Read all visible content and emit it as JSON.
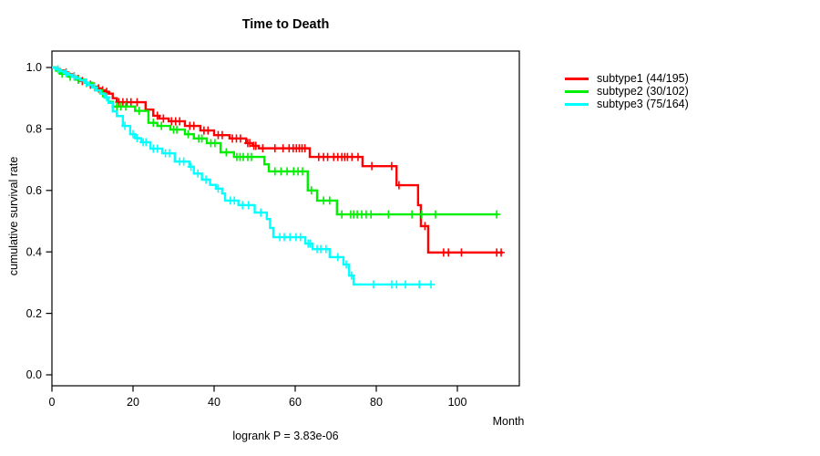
{
  "chart_data": {
    "type": "line",
    "subtype": "kaplan-meier-step-curves",
    "title": "Time to Death",
    "xlabel": "Month",
    "ylabel": "cumulative survival rate",
    "annotation": "logrank P = 3.83e-06",
    "x_ticks": [
      0,
      20,
      40,
      60,
      80,
      100
    ],
    "y_ticks": [
      "0.0",
      "0.2",
      "0.4",
      "0.6",
      "0.8",
      "1.0"
    ],
    "xlim": [
      0,
      115.3
    ],
    "ylim": [
      0,
      1.05
    ],
    "grid": false,
    "legend_position": "right-outside",
    "axis_color": "#000000",
    "series": [
      {
        "name": "subtype1",
        "label": "subtype1 (44/195)",
        "color": "#ff0000",
        "end_x": 111.2,
        "points": [
          [
            0,
            1.0
          ],
          [
            1,
            0.995
          ],
          [
            2,
            0.99
          ],
          [
            3,
            0.984
          ],
          [
            4,
            0.978
          ],
          [
            5,
            0.971
          ],
          [
            6,
            0.963
          ],
          [
            7,
            0.956
          ],
          [
            8,
            0.95
          ],
          [
            9,
            0.944
          ],
          [
            10,
            0.938
          ],
          [
            11,
            0.932
          ],
          [
            12,
            0.926
          ],
          [
            13,
            0.921
          ],
          [
            14,
            0.915
          ],
          [
            15,
            0.9
          ],
          [
            16,
            0.887
          ],
          [
            23.1,
            0.863
          ],
          [
            25,
            0.843
          ],
          [
            26.5,
            0.834
          ],
          [
            28.8,
            0.825
          ],
          [
            32.8,
            0.81
          ],
          [
            36.6,
            0.795
          ],
          [
            40,
            0.78
          ],
          [
            43.8,
            0.769
          ],
          [
            47.9,
            0.754
          ],
          [
            49.5,
            0.745
          ],
          [
            51,
            0.737
          ],
          [
            63.6,
            0.709
          ],
          [
            76.6,
            0.679
          ],
          [
            85,
            0.617
          ],
          [
            90.3,
            0.552
          ],
          [
            91,
            0.484
          ],
          [
            92.8,
            0.398
          ]
        ],
        "censor_months": [
          3.5,
          5.5,
          6.5,
          7.5,
          8.5,
          9.5,
          10.5,
          11.5,
          12.5,
          13.5,
          16.5,
          17.5,
          18.5,
          19.5,
          21,
          26,
          27.5,
          29.5,
          30.5,
          31.5,
          34,
          35,
          37.5,
          38.5,
          41,
          42,
          44.5,
          45.5,
          46.5,
          48.3,
          48.8,
          49.8,
          50.3,
          52,
          55,
          57,
          58.5,
          59.5,
          60.3,
          61,
          61.7,
          62.4,
          65.8,
          67,
          68,
          69.5,
          70.5,
          71.5,
          72.2,
          72.9,
          74,
          75.5,
          78.9,
          83.8,
          85.6,
          92,
          96.6,
          97.8,
          101,
          109.7,
          110.8
        ]
      },
      {
        "name": "subtype2",
        "label": "subtype2 (30/102)",
        "color": "#00ee00",
        "end_x": 110.1,
        "points": [
          [
            0,
            1.0
          ],
          [
            1,
            0.99
          ],
          [
            2,
            0.98
          ],
          [
            4,
            0.97
          ],
          [
            6,
            0.96
          ],
          [
            8,
            0.95
          ],
          [
            10,
            0.936
          ],
          [
            11,
            0.926
          ],
          [
            12,
            0.916
          ],
          [
            13,
            0.902
          ],
          [
            14,
            0.888
          ],
          [
            15,
            0.873
          ],
          [
            20.5,
            0.859
          ],
          [
            23.8,
            0.82
          ],
          [
            26,
            0.81
          ],
          [
            29.2,
            0.798
          ],
          [
            32.8,
            0.783
          ],
          [
            35,
            0.769
          ],
          [
            38.2,
            0.754
          ],
          [
            41.6,
            0.724
          ],
          [
            44.9,
            0.709
          ],
          [
            52.4,
            0.685
          ],
          [
            53.5,
            0.662
          ],
          [
            63.1,
            0.6
          ],
          [
            65.4,
            0.567
          ],
          [
            70.3,
            0.522
          ]
        ],
        "censor_months": [
          2.5,
          4.5,
          6.5,
          8.5,
          10.5,
          12.5,
          16,
          17,
          18.2,
          21.5,
          25,
          27,
          30,
          30.8,
          33.6,
          36.2,
          37,
          39.2,
          40.2,
          43,
          45.6,
          46.4,
          47.2,
          48.3,
          49.2,
          55,
          56.5,
          58,
          59.6,
          60.7,
          61.8,
          64,
          67,
          68.5,
          71.5,
          73.7,
          74.4,
          75.3,
          76.4,
          77.5,
          78.7,
          83,
          88.8,
          91.2,
          94.6,
          109.7
        ]
      },
      {
        "name": "subtype3",
        "label": "subtype3 (75/164)",
        "color": "#00ffff",
        "end_x": 93.5,
        "points": [
          [
            0,
            1.0
          ],
          [
            1,
            0.994
          ],
          [
            2,
            0.988
          ],
          [
            3,
            0.982
          ],
          [
            4,
            0.976
          ],
          [
            5,
            0.97
          ],
          [
            6,
            0.964
          ],
          [
            7,
            0.958
          ],
          [
            8,
            0.951
          ],
          [
            9,
            0.943
          ],
          [
            10,
            0.935
          ],
          [
            11,
            0.925
          ],
          [
            12,
            0.915
          ],
          [
            13,
            0.903
          ],
          [
            14,
            0.885
          ],
          [
            15,
            0.857
          ],
          [
            16,
            0.842
          ],
          [
            17.5,
            0.81
          ],
          [
            19.3,
            0.783
          ],
          [
            20.5,
            0.77
          ],
          [
            22,
            0.757
          ],
          [
            24.3,
            0.736
          ],
          [
            27.2,
            0.721
          ],
          [
            30.3,
            0.694
          ],
          [
            33.9,
            0.677
          ],
          [
            35,
            0.655
          ],
          [
            37,
            0.635
          ],
          [
            39,
            0.618
          ],
          [
            40.5,
            0.606
          ],
          [
            42,
            0.59
          ],
          [
            42.7,
            0.567
          ],
          [
            46,
            0.552
          ],
          [
            50,
            0.528
          ],
          [
            53,
            0.507
          ],
          [
            53.8,
            0.478
          ],
          [
            54.6,
            0.448
          ],
          [
            62.5,
            0.427
          ],
          [
            64.3,
            0.409
          ],
          [
            68.5,
            0.383
          ],
          [
            71.9,
            0.359
          ],
          [
            73.3,
            0.323
          ],
          [
            74.4,
            0.294
          ]
        ],
        "censor_months": [
          1.5,
          3.5,
          5.5,
          8.5,
          10.5,
          13.5,
          18,
          20,
          21,
          22.5,
          23.2,
          25,
          26,
          28,
          29,
          31.5,
          32.5,
          34.3,
          36,
          38,
          41,
          44,
          45,
          47,
          48.5,
          51.5,
          56.2,
          57.3,
          58.7,
          60.2,
          61.3,
          63.2,
          63.7,
          65.4,
          66.3,
          67.6,
          70.5,
          72.6,
          73.9,
          79.3,
          83.8,
          85,
          87.2,
          90.6,
          93.5
        ]
      }
    ]
  }
}
